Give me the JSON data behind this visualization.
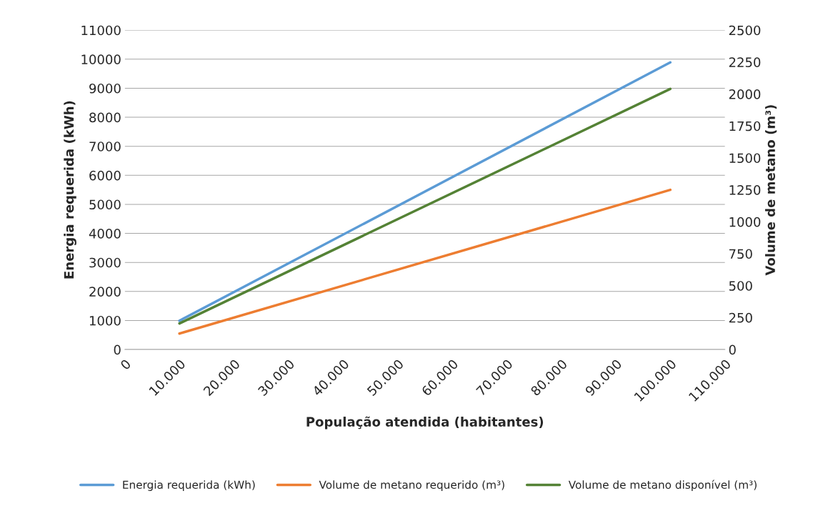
{
  "chart_data": {
    "type": "line",
    "xlabel": "População atendida (habitantes)",
    "ylabel": "Energia requerida (kWh)",
    "y2label": "Volume de metano (m³)",
    "x": [
      10000,
      100000
    ],
    "series": [
      {
        "name": "Energia requerida (kWh)",
        "color": "#5b9bd5",
        "values": [
          990,
          9890
        ]
      },
      {
        "name": "Volume de metano requerido (m³)",
        "color": "#ed7d31",
        "values": [
          125,
          1250
        ],
        "axis": "y2"
      },
      {
        "name": "Volume de metano disponível (m³)",
        "color": "#548235",
        "values": [
          204,
          2040
        ],
        "axis": "y2"
      }
    ],
    "xlim": [
      0,
      110000
    ],
    "xticks": [
      0,
      {
        "value": 10000,
        "label": "10.000"
      },
      {
        "value": 20000,
        "label": "20.000"
      },
      {
        "value": 30000,
        "label": "30.000"
      },
      {
        "value": 40000,
        "label": "40.000"
      },
      {
        "value": 50000,
        "label": "50.000"
      },
      {
        "value": 60000,
        "label": "60.000"
      },
      {
        "value": 70000,
        "label": "70.000"
      },
      {
        "value": 80000,
        "label": "80.000"
      },
      {
        "value": 90000,
        "label": "90.000"
      },
      {
        "value": 100000,
        "label": "100.000"
      },
      {
        "value": 110000,
        "label": "110.000"
      }
    ],
    "ylim": [
      0,
      11000
    ],
    "yticks": [
      0,
      1000,
      2000,
      3000,
      4000,
      5000,
      6000,
      7000,
      8000,
      9000,
      10000,
      11000
    ],
    "y2lim": [
      0,
      2500
    ],
    "y2ticks": [
      0,
      250,
      500,
      750,
      1000,
      1250,
      1500,
      1750,
      2000,
      2250,
      2500
    ],
    "grid": "y",
    "legend": "bottom",
    "line_style": "solid",
    "marker": "none"
  }
}
